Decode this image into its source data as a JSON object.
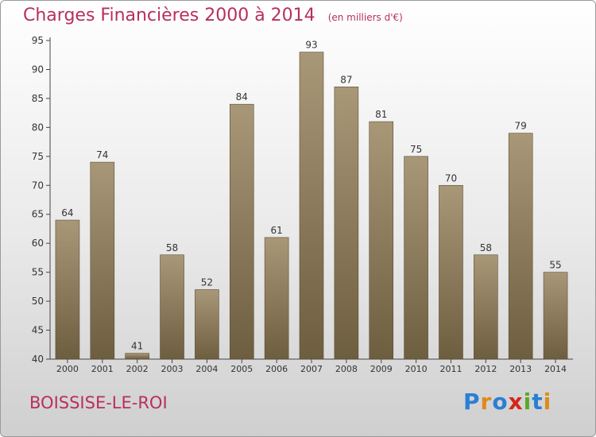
{
  "header": {
    "title": "Charges Financières 2000 à 2014",
    "subtitle": "(en milliers d'€)"
  },
  "footer": {
    "place": "BOISSISE-LE-ROI",
    "logo_letters": [
      {
        "ch": "P",
        "color": "#2a7fd4"
      },
      {
        "ch": "r",
        "color": "#e08a1a"
      },
      {
        "ch": "o",
        "color": "#2a7fd4"
      },
      {
        "ch": "x",
        "color": "#d4241c"
      },
      {
        "ch": "i",
        "color": "#5aa82a"
      },
      {
        "ch": "t",
        "color": "#2a7fd4"
      },
      {
        "ch": "i",
        "color": "#e08a1a"
      }
    ]
  },
  "colors": {
    "accent": "#b8305a",
    "bar_top": "#a89878",
    "bar_bottom": "#6e5e40"
  },
  "chart_data": {
    "type": "bar",
    "title": "Charges Financières 2000 à 2014",
    "subtitle": "(en milliers d'€)",
    "categories": [
      "2000",
      "2001",
      "2002",
      "2003",
      "2004",
      "2005",
      "2006",
      "2007",
      "2008",
      "2009",
      "2010",
      "2011",
      "2012",
      "2013",
      "2014"
    ],
    "values": [
      64,
      74,
      41,
      58,
      52,
      84,
      61,
      93,
      87,
      81,
      75,
      70,
      58,
      79,
      55
    ],
    "ylim": [
      40,
      95
    ],
    "yticks": [
      40,
      45,
      50,
      55,
      60,
      65,
      70,
      75,
      80,
      85,
      90,
      95
    ],
    "grid": false,
    "data_labels": true
  }
}
